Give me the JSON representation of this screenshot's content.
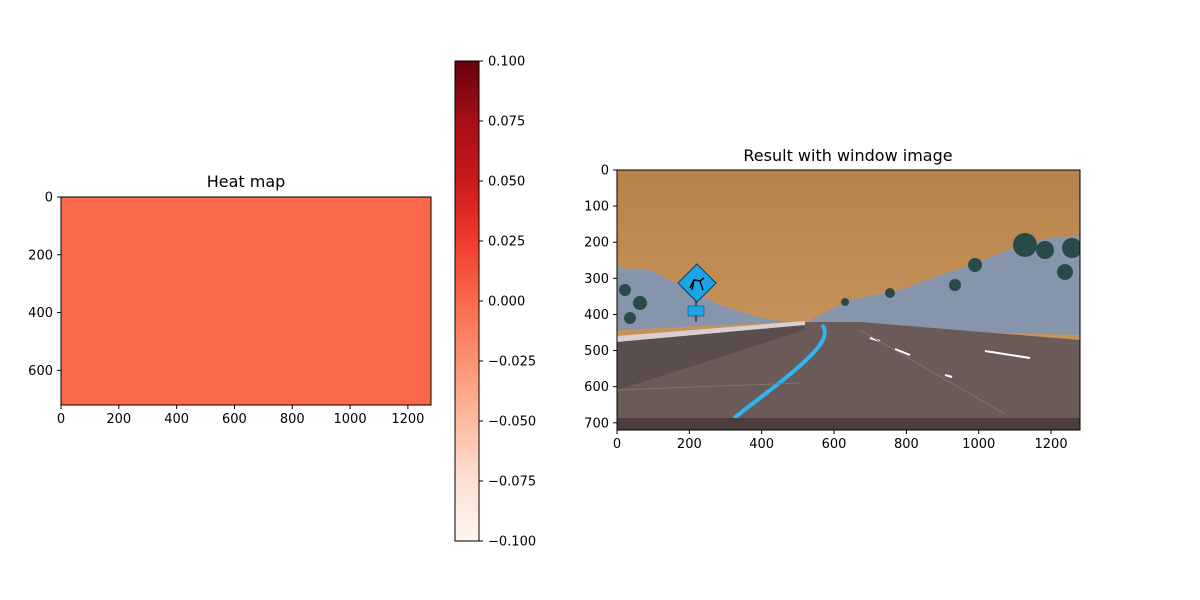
{
  "chart_data": [
    {
      "type": "heatmap",
      "title": "Heat map",
      "xlim": [
        0,
        1280
      ],
      "ylim": [
        720,
        0
      ],
      "xticks": [
        0,
        200,
        400,
        600,
        800,
        1000,
        1200
      ],
      "yticks": [
        0,
        200,
        400,
        600
      ],
      "x_tick_labels": [
        "0",
        "200",
        "400",
        "600",
        "800",
        "1000",
        "1200"
      ],
      "y_tick_labels": [
        "0",
        "200",
        "400",
        "600"
      ],
      "value": 0.0,
      "fill_color": "#fb694a",
      "colorbar": {
        "cmap": "Reds",
        "vmin": -0.1,
        "vmax": 0.1,
        "ticks": [
          0.1,
          0.075,
          0.05,
          0.025,
          0.0,
          -0.025,
          -0.05,
          -0.075,
          -0.1
        ],
        "tick_labels": [
          "0.100",
          "0.075",
          "0.050",
          "0.025",
          "0.000",
          "−0.025",
          "−0.050",
          "−0.075",
          "−0.100"
        ],
        "colors": [
          "#fff5f0",
          "#fee0d2",
          "#fcbba1",
          "#fc9272",
          "#fb6a4a",
          "#ef3b2c",
          "#cb181d",
          "#a50f15",
          "#67000d"
        ]
      }
    },
    {
      "type": "image",
      "title": "Result with window image",
      "xlim": [
        0,
        1280
      ],
      "ylim": [
        720,
        0
      ],
      "xticks": [
        0,
        200,
        400,
        600,
        800,
        1000,
        1200
      ],
      "yticks": [
        0,
        100,
        200,
        300,
        400,
        500,
        600,
        700
      ],
      "x_tick_labels": [
        "0",
        "200",
        "400",
        "600",
        "800",
        "1000",
        "1200"
      ],
      "y_tick_labels": [
        "0",
        "100",
        "200",
        "300",
        "400",
        "500",
        "600",
        "700"
      ],
      "scene_colors": {
        "sky_top": "#b7834a",
        "sky_bottom": "#cf9c66",
        "hills": "#8795ac",
        "trees": "#2a4a4a",
        "barrier": "#5a4e4c",
        "road": "#6a5a58",
        "lane": "#2eb6f0",
        "sign": "#19a5e6"
      }
    }
  ]
}
